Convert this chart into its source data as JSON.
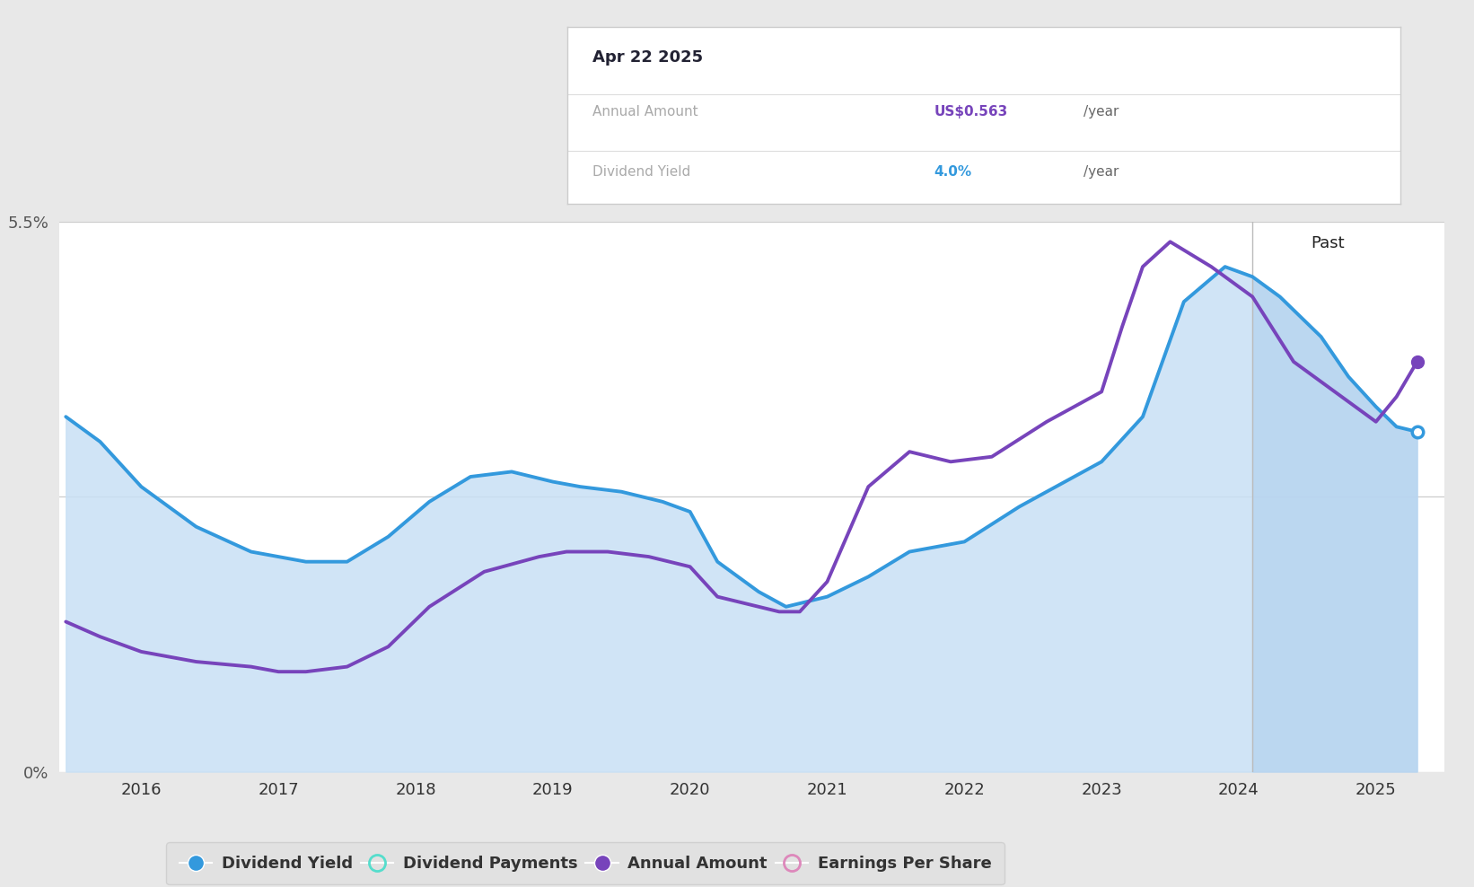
{
  "background_color": "#e8e8e8",
  "plot_bg_color": "#ffffff",
  "tooltip": {
    "date": "Apr 22 2025",
    "annual_amount_label": "Annual Amount",
    "annual_amount_value": "US$0.563",
    "annual_amount_unit": "/year",
    "dividend_yield_label": "Dividend Yield",
    "dividend_yield_value": "4.0%",
    "dividend_yield_unit": "/year"
  },
  "blue_color": "#3399dd",
  "purple_color": "#7744bb",
  "teal_color": "#55ddcc",
  "pink_color": "#dd88bb",
  "fill_color_hex": "#c8e0f5",
  "fill_alpha": 0.85,
  "past_fill_color_hex": "#b8d5f0",
  "past_fill_alpha": 0.95,
  "past_line_x": 2024.1,
  "x_ticks": [
    2016,
    2017,
    2018,
    2019,
    2020,
    2021,
    2022,
    2023,
    2024,
    2025
  ],
  "ymin": 0.0,
  "ymax": 5.5,
  "xmin": 2015.4,
  "xmax": 2025.5,
  "dividend_yield_x": [
    2015.45,
    2015.7,
    2016.0,
    2016.4,
    2016.8,
    2017.0,
    2017.2,
    2017.5,
    2017.8,
    2018.1,
    2018.4,
    2018.7,
    2019.0,
    2019.2,
    2019.5,
    2019.8,
    2020.0,
    2020.2,
    2020.5,
    2020.7,
    2021.0,
    2021.3,
    2021.6,
    2022.0,
    2022.4,
    2022.8,
    2023.0,
    2023.3,
    2023.6,
    2023.9,
    2024.1,
    2024.3,
    2024.6,
    2024.8,
    2025.0,
    2025.15,
    2025.3
  ],
  "dividend_yield_y": [
    3.55,
    3.3,
    2.85,
    2.45,
    2.2,
    2.15,
    2.1,
    2.1,
    2.35,
    2.7,
    2.95,
    3.0,
    2.9,
    2.85,
    2.8,
    2.7,
    2.6,
    2.1,
    1.8,
    1.65,
    1.75,
    1.95,
    2.2,
    2.3,
    2.65,
    2.95,
    3.1,
    3.55,
    4.7,
    5.05,
    4.95,
    4.75,
    4.35,
    3.95,
    3.65,
    3.45,
    3.4
  ],
  "annual_amount_x": [
    2015.45,
    2015.7,
    2016.0,
    2016.4,
    2016.8,
    2017.0,
    2017.2,
    2017.5,
    2017.8,
    2018.1,
    2018.5,
    2018.9,
    2019.1,
    2019.4,
    2019.7,
    2020.0,
    2020.2,
    2020.5,
    2020.65,
    2020.8,
    2021.0,
    2021.3,
    2021.6,
    2021.9,
    2022.2,
    2022.6,
    2023.0,
    2023.15,
    2023.3,
    2023.5,
    2023.8,
    2024.0,
    2024.1,
    2024.4,
    2024.7,
    2025.0,
    2025.15,
    2025.3
  ],
  "annual_amount_y": [
    1.5,
    1.35,
    1.2,
    1.1,
    1.05,
    1.0,
    1.0,
    1.05,
    1.25,
    1.65,
    2.0,
    2.15,
    2.2,
    2.2,
    2.15,
    2.05,
    1.75,
    1.65,
    1.6,
    1.6,
    1.9,
    2.85,
    3.2,
    3.1,
    3.15,
    3.5,
    3.8,
    4.45,
    5.05,
    5.3,
    5.05,
    4.85,
    4.75,
    4.1,
    3.8,
    3.5,
    3.75,
    4.1
  ],
  "past_label": "Past",
  "ylabel_5_5": "5.5%",
  "ylabel_0": "0%"
}
